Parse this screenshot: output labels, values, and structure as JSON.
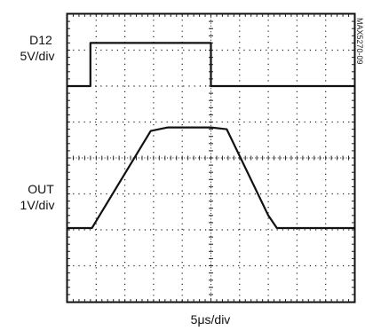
{
  "chart_data": {
    "type": "line",
    "grid": true,
    "divisions": {
      "x": 10,
      "y": 8
    },
    "xlabel": "5μs/div",
    "figure_id": "MAX5270-09",
    "channels": [
      {
        "name": "D12",
        "scale": "5V/div"
      },
      {
        "name": "OUT",
        "scale": "1V/div"
      }
    ],
    "series": [
      {
        "name": "D12",
        "x": [
          0,
          0.8,
          0.8,
          5.0,
          5.0,
          10
        ],
        "y": [
          6.0,
          6.0,
          7.2,
          7.2,
          6.0,
          6.0
        ]
      },
      {
        "name": "OUT",
        "x": [
          0,
          0.85,
          2.9,
          3.5,
          5.0,
          5.55,
          7.0,
          7.3,
          8.0,
          10
        ],
        "y": [
          2.05,
          2.05,
          4.75,
          4.85,
          4.85,
          4.8,
          2.4,
          2.05,
          2.05,
          2.05
        ]
      }
    ]
  }
}
